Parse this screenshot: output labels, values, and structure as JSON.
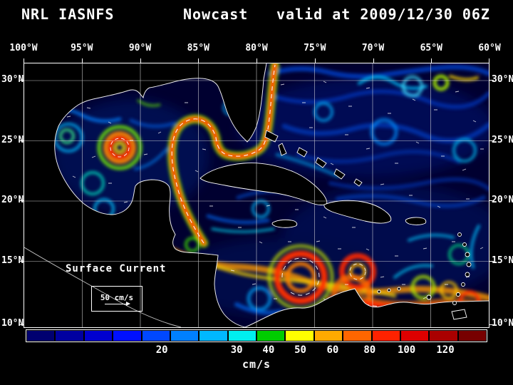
{
  "title": {
    "system": "NRL IASNFS",
    "product": "Nowcast",
    "valid": "valid at 2009/12/30 06Z"
  },
  "map": {
    "lon_labels": [
      "100°W",
      "95°W",
      "90°W",
      "85°W",
      "80°W",
      "75°W",
      "70°W",
      "65°W",
      "60°W"
    ],
    "lat_labels_left": [
      "30°N",
      "25°N",
      "20°N",
      "15°N",
      "10°N"
    ],
    "lat_labels_right": [
      "30°N",
      "25°N",
      "20°N",
      "15°N",
      "10°N"
    ],
    "annotation": "Surface Current",
    "scale_text": "50 cm/s"
  },
  "colorbar": {
    "unit": "cm/s",
    "tick_labels": [
      "20",
      "30",
      "40",
      "50",
      "60",
      "80",
      "100",
      "120"
    ],
    "colors": [
      "#000070",
      "#0000a0",
      "#0000d0",
      "#0010ff",
      "#0048ff",
      "#0080ff",
      "#00b8ff",
      "#00eeee",
      "#00cc00",
      "#ffff00",
      "#ffaa00",
      "#ff6600",
      "#ff2200",
      "#dd0000",
      "#aa0000",
      "#770000"
    ]
  },
  "chart_data": {
    "type": "heatmap",
    "title": "NRL IASNFS Nowcast valid at 2009/12/30 06Z",
    "quantity": "Sea surface current speed",
    "unit": "cm/s",
    "x_ticks": [
      "100°W",
      "95°W",
      "90°W",
      "85°W",
      "80°W",
      "75°W",
      "70°W",
      "65°W",
      "60°W"
    ],
    "y_ticks": [
      "30°N",
      "25°N",
      "20°N",
      "15°N",
      "10°N"
    ],
    "colorbar_ticks": [
      20,
      30,
      40,
      50,
      60,
      80,
      100,
      120
    ],
    "legend_position": "bottom",
    "grid": true,
    "features": [
      "High-speed (red) Loop Current / Gulf Stream band through Yucatan Channel, Florida Straits and north along Florida east coast",
      "Warm-core ring eddy in western Gulf of Mexico near 93°W 25°N",
      "Energetic red/orange eddies in southwest Caribbean near 78°W 14°N",
      "Strong currents along the Venezuelan coast; mostly weak (blue) flow in open Atlantic"
    ]
  }
}
